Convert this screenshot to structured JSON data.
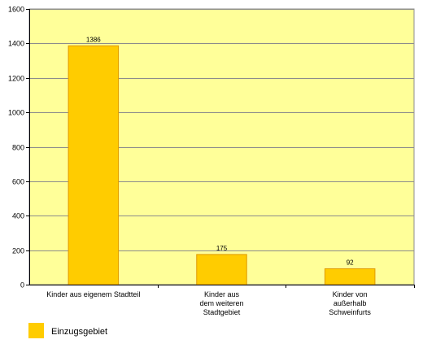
{
  "chart_data": {
    "type": "bar",
    "categories": [
      [
        "Kinder aus eigenem Stadtteil"
      ],
      [
        "Kinder aus",
        "dem weiteren",
        "Stadtgebiet"
      ],
      [
        "Kinder von",
        "außerhalb",
        "Schweinfurts"
      ]
    ],
    "series": [
      {
        "name": "Einzugsgebiet",
        "values": [
          1386,
          175,
          92
        ]
      }
    ],
    "ylim": [
      0,
      1600
    ],
    "yticks": [
      0,
      200,
      400,
      600,
      800,
      1000,
      1200,
      1400,
      1600
    ],
    "grid": true,
    "legend": "bottom-left",
    "colors": {
      "plot_background": "#ffff99",
      "bar_fill": "#ffcc00",
      "bar_stroke": "#e09a00",
      "grid": "#8c8c8c"
    }
  }
}
